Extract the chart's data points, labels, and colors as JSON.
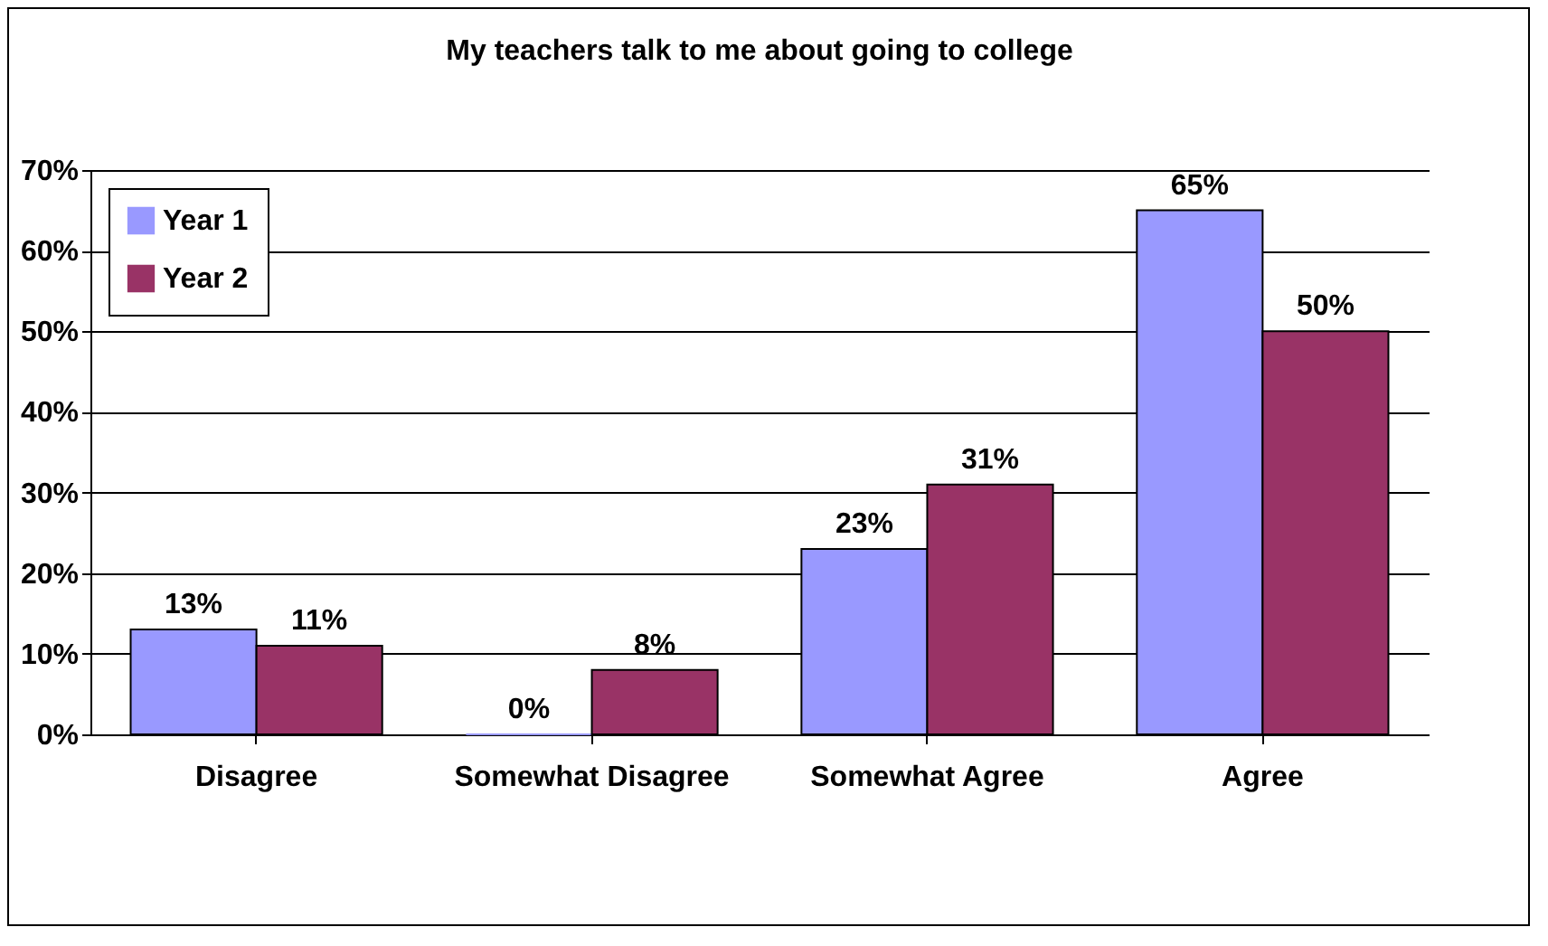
{
  "chart_data": {
    "type": "bar",
    "title": "My teachers talk to me about going to college",
    "categories": [
      "Disagree",
      "Somewhat Disagree",
      "Somewhat Agree",
      "Agree"
    ],
    "series": [
      {
        "name": "Year 1",
        "color": "#9999ff",
        "values": [
          13,
          0,
          23,
          65
        ],
        "value_labels": [
          "13%",
          "0%",
          "23%",
          "65%"
        ]
      },
      {
        "name": "Year 2",
        "color": "#993366",
        "values": [
          11,
          8,
          31,
          50
        ],
        "value_labels": [
          "11%",
          "8%",
          "31%",
          "50%"
        ]
      }
    ],
    "ylim": [
      0,
      70
    ],
    "yticks": [
      {
        "value": 0,
        "label": "0%"
      },
      {
        "value": 10,
        "label": "10%"
      },
      {
        "value": 20,
        "label": "20%"
      },
      {
        "value": 30,
        "label": "30%"
      },
      {
        "value": 40,
        "label": "40%"
      },
      {
        "value": 50,
        "label": "50%"
      },
      {
        "value": 60,
        "label": "60%"
      },
      {
        "value": 70,
        "label": "70%"
      }
    ],
    "grid": "y",
    "legend": "top left"
  }
}
